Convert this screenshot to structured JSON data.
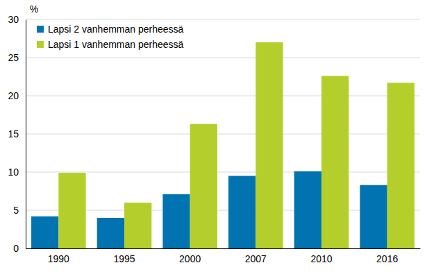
{
  "chart_data": {
    "type": "bar",
    "y_label": "%",
    "categories": [
      "1990",
      "1995",
      "2000",
      "2007",
      "2010",
      "2016"
    ],
    "series": [
      {
        "name": "Lapsi 2 vanhemman perheessä",
        "color": "#0073b0",
        "values": [
          4.2,
          4.0,
          7.1,
          9.5,
          10.1,
          8.3
        ]
      },
      {
        "name": "Lapsi 1 vanhemman perheessä",
        "color": "#b4cf2b",
        "values": [
          9.9,
          6.0,
          16.3,
          27.0,
          22.6,
          21.7
        ]
      }
    ],
    "ylim": [
      0,
      30
    ],
    "yticks": [
      0,
      5,
      10,
      15,
      20,
      25,
      30
    ],
    "grid": true,
    "legend": "top-left"
  }
}
